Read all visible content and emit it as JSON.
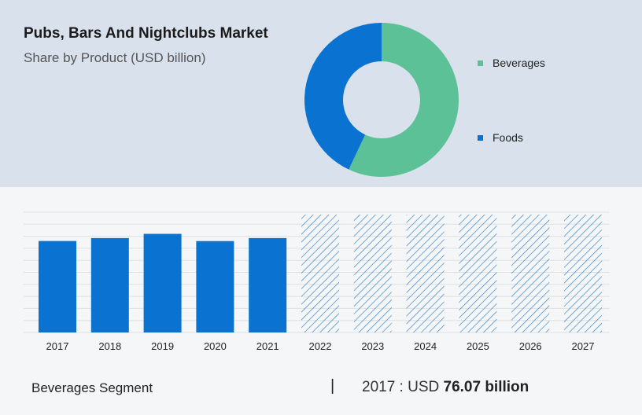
{
  "header": {
    "title": "Pubs, Bars And Nightclubs Market",
    "subtitle": "Share by Product (USD billion)"
  },
  "colors": {
    "beverages": "#5cc196",
    "foods": "#0a72d0",
    "bar": "#0a72d0",
    "forecast_hatch": "#2a7fc9",
    "grid": "#e0e0e0"
  },
  "legend": {
    "items": [
      {
        "label": "Beverages",
        "color": "#5cc196"
      },
      {
        "label": "Foods",
        "color": "#0a72d0"
      }
    ]
  },
  "chart_data": [
    {
      "type": "pie",
      "variant": "donut",
      "categories": [
        "Beverages",
        "Foods"
      ],
      "values": [
        57,
        43
      ],
      "legend_position": "right"
    },
    {
      "type": "bar",
      "categories": [
        "2017",
        "2018",
        "2019",
        "2020",
        "2021",
        "2022",
        "2023",
        "2024",
        "2025",
        "2026",
        "2027"
      ],
      "values": [
        76.07,
        78.5,
        82,
        76,
        78.5,
        98,
        98,
        98,
        98,
        98,
        98
      ],
      "forecast_from_index": 5,
      "ylim": [
        0,
        100
      ],
      "grid": true
    }
  ],
  "footer": {
    "segment_label": "Beverages Segment",
    "separator": "|",
    "year_value_prefix": "2017 :  USD ",
    "highlight_value": "76.07 billion"
  }
}
